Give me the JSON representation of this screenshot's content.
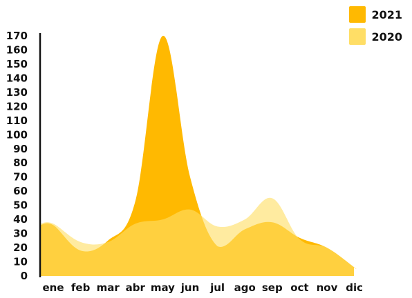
{
  "chart_data": {
    "type": "area",
    "categories": [
      "ene",
      "feb",
      "mar",
      "abr",
      "may",
      "jun",
      "jul",
      "ago",
      "sep",
      "oct",
      "nov",
      "dic"
    ],
    "ylim": [
      0,
      170
    ],
    "yticks": [
      0,
      10,
      20,
      30,
      40,
      50,
      60,
      70,
      80,
      90,
      100,
      110,
      120,
      130,
      140,
      150,
      160,
      170
    ],
    "legend_position": "top-right",
    "series": [
      {
        "name": "2021",
        "color": "#FFB901",
        "values": [
          36,
          18,
          25,
          53,
          170,
          70,
          21,
          33,
          38,
          27,
          20,
          6
        ]
      },
      {
        "name": "2020",
        "color": "#FFDE66",
        "values": [
          37,
          24,
          24,
          37,
          40,
          47,
          35,
          40,
          55,
          26,
          20,
          6
        ]
      }
    ]
  }
}
